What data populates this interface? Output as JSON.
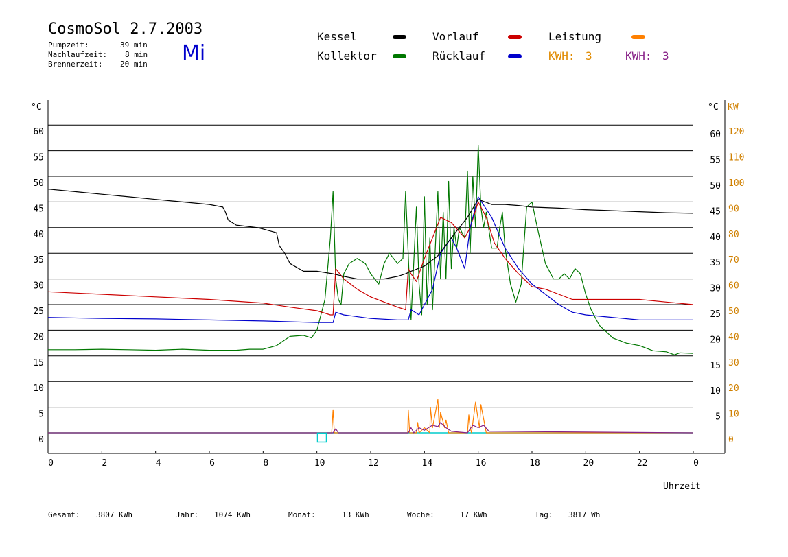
{
  "header": {
    "title": "CosmoSol 2.7.2003",
    "pump_label": "Pumpzeit:",
    "pump_value": "39 min",
    "run_label": "Nachlaufzeit:",
    "run_value": "8 min",
    "burn_label": "Brennerzeit:",
    "burn_value": "20 min",
    "day": "Mi"
  },
  "legend": {
    "kessel": "Kessel",
    "kollektor": "Kollektor",
    "vorlauf": "Vorlauf",
    "ruecklauf": "Rücklauf",
    "leistung": "Leistung",
    "kwh1_label": "KWH:",
    "kwh1_value": "3",
    "kwh2_label": "KWH:",
    "kwh2_value": "3"
  },
  "footer": {
    "gesamt_label": "Gesamt:",
    "gesamt_value": "3807 KWh",
    "jahr_label": "Jahr:",
    "jahr_value": "1074 KWh",
    "monat_label": "Monat:",
    "monat_value": "13 KWh",
    "woche_label": "Woche:",
    "woche_value": "17 KWh",
    "tag_label": "Tag:",
    "tag_value": "3817 Wh"
  },
  "colors": {
    "kessel": "#000000",
    "kollektor": "#007700",
    "vorlauf": "#cc0000",
    "ruecklauf": "#0000cc",
    "leistung": "#ff8000",
    "kwh2": "#882288",
    "baseline": "#00cccc",
    "axis_right": "#d08000"
  },
  "chart_data": {
    "type": "line",
    "xlabel": "Uhrzeit",
    "ylabel_left": "°C",
    "ylabel_right_c": "°C",
    "ylabel_right_kw": "KW",
    "xlim": [
      0,
      24
    ],
    "ylim": [
      0,
      60
    ],
    "y2lim": [
      0,
      120
    ],
    "x_ticks": [
      "0",
      "2",
      "4",
      "6",
      "8",
      "10",
      "12",
      "14",
      "16",
      "18",
      "20",
      "22",
      "0"
    ],
    "y_ticks": [
      0,
      5,
      10,
      15,
      20,
      25,
      30,
      35,
      40,
      45,
      50,
      55,
      60
    ],
    "y2_ticks": [
      0,
      10,
      20,
      30,
      40,
      50,
      60,
      70,
      80,
      90,
      100,
      110,
      120
    ],
    "series": [
      {
        "name": "Kessel",
        "key": "kessel",
        "x": [
          0,
          1,
          2,
          3,
          4,
          5,
          6,
          6.5,
          6.6,
          6.7,
          7,
          7.8,
          8.5,
          8.6,
          8.8,
          9.0,
          9.5,
          10,
          10.6,
          11,
          11.5,
          12,
          12.5,
          13,
          13.3,
          13.5,
          14,
          14.5,
          15,
          15.3,
          15.6,
          16,
          16.5,
          17,
          17.5,
          18,
          19,
          20,
          21,
          22,
          23,
          24
        ],
        "y": [
          47.5,
          47,
          46.5,
          46,
          45.5,
          45,
          44.5,
          44,
          43,
          41.5,
          40.5,
          40,
          39,
          36.5,
          35,
          33,
          31.5,
          31.5,
          31,
          30.5,
          30,
          30,
          30,
          30.5,
          31,
          31.5,
          32.5,
          34.5,
          38,
          40,
          42,
          45.5,
          44.5,
          44.5,
          44.3,
          44,
          43.8,
          43.5,
          43.3,
          43.1,
          42.9,
          42.8
        ]
      },
      {
        "name": "Vorlauf",
        "key": "vorlauf",
        "x": [
          0,
          2,
          4,
          6,
          8,
          9,
          10,
          10.5,
          10.6,
          10.7,
          11,
          11.5,
          12,
          12.5,
          13,
          13.3,
          13.4,
          13.5,
          13.7,
          14,
          14.3,
          14.6,
          15,
          15.5,
          15.7,
          16,
          16.3,
          16.6,
          17,
          17.5,
          18,
          18.5,
          19,
          19.5,
          20,
          21,
          22,
          23,
          24
        ],
        "y": [
          27.5,
          27,
          26.5,
          26,
          25.3,
          24.5,
          23.8,
          23,
          23,
          32,
          30,
          28,
          26.5,
          25.5,
          24.5,
          24,
          32,
          31,
          29.5,
          34,
          38,
          42,
          41,
          38,
          40,
          45,
          42,
          37,
          34,
          31,
          28.5,
          28,
          27,
          26,
          26,
          26,
          26,
          25.5,
          25
        ]
      },
      {
        "name": "Rücklauf",
        "key": "ruecklauf",
        "x": [
          0,
          2,
          4,
          6,
          8,
          10,
          10.6,
          10.7,
          11,
          12,
          13,
          13.4,
          13.5,
          13.8,
          14,
          14.3,
          14.6,
          15,
          15.2,
          15.5,
          15.7,
          16,
          16.5,
          17,
          17.5,
          18,
          18.5,
          19,
          19.5,
          20,
          21,
          22,
          23,
          24
        ],
        "y": [
          22.5,
          22.3,
          22.2,
          22,
          21.8,
          21.5,
          21.5,
          23.5,
          23,
          22.3,
          22,
          22,
          24,
          23,
          25,
          28,
          35,
          38,
          36,
          32,
          40,
          46,
          42,
          36,
          32,
          29,
          27,
          25,
          23.5,
          23,
          22.5,
          22,
          22,
          22
        ]
      },
      {
        "name": "Kollektor",
        "key": "kollektor",
        "x": [
          0,
          1,
          2,
          3,
          4,
          5,
          6,
          7,
          7.5,
          8,
          8.5,
          9,
          9.5,
          9.8,
          10,
          10.3,
          10.5,
          10.6,
          10.7,
          10.8,
          10.9,
          11,
          11.2,
          11.5,
          11.8,
          12,
          12.3,
          12.5,
          12.7,
          13,
          13.2,
          13.3,
          13.5,
          13.7,
          13.8,
          13.9,
          14.0,
          14.1,
          14.2,
          14.3,
          14.5,
          14.6,
          14.7,
          14.8,
          14.9,
          15.0,
          15.1,
          15.2,
          15.3,
          15.5,
          15.6,
          15.7,
          15.8,
          15.9,
          16.0,
          16.1,
          16.2,
          16.3,
          16.5,
          16.7,
          16.8,
          16.9,
          17.0,
          17.2,
          17.4,
          17.6,
          17.8,
          18.0,
          18.2,
          18.5,
          18.8,
          19.0,
          19.2,
          19.4,
          19.6,
          19.8,
          20.0,
          20.2,
          20.5,
          21.0,
          21.5,
          22.0,
          22.5,
          23.0,
          23.3,
          23.5,
          24
        ],
        "y": [
          16.2,
          16.2,
          16.3,
          16.2,
          16.1,
          16.3,
          16.1,
          16.1,
          16.3,
          16.3,
          17,
          18.8,
          19,
          18.5,
          20,
          26,
          38,
          47,
          30,
          26,
          25,
          31,
          33,
          34,
          33,
          31,
          29,
          33,
          35,
          33,
          34,
          47,
          22,
          44,
          29,
          23,
          46,
          25,
          38,
          24,
          47,
          30,
          43,
          30,
          49,
          32,
          40,
          36,
          40,
          38,
          51,
          35,
          50,
          40,
          56,
          44,
          40,
          43,
          36,
          36,
          40,
          43,
          36,
          29,
          25.5,
          29,
          44,
          45,
          40,
          33,
          30,
          30,
          31,
          30,
          32,
          31,
          27,
          24,
          21,
          18.5,
          17.5,
          17,
          16,
          15.8,
          15.2,
          15.6,
          15.5
        ]
      },
      {
        "name": "Leistung",
        "key": "leistung",
        "x": [
          0,
          10.55,
          10.6,
          10.65,
          10.8,
          13.38,
          13.4,
          13.45,
          13.7,
          13.75,
          13.8,
          14.0,
          14.2,
          14.22,
          14.3,
          14.5,
          14.55,
          14.6,
          14.75,
          14.8,
          14.9,
          15.6,
          15.65,
          15.7,
          15.75,
          15.9,
          16.0,
          16.05,
          16.1,
          16.3,
          24
        ],
        "y": [
          0,
          0,
          4.5,
          0,
          0,
          0,
          4.5,
          0,
          0,
          2,
          0,
          1,
          0,
          5,
          1,
          6.5,
          1,
          4,
          1,
          2.5,
          0,
          0,
          3.5,
          1,
          0,
          6,
          2.5,
          1,
          5.5,
          0,
          0
        ]
      },
      {
        "name": "KWH",
        "key": "kwh2",
        "x": [
          0,
          10.6,
          10.7,
          10.8,
          13.4,
          13.5,
          13.6,
          13.8,
          14.0,
          14.3,
          14.5,
          14.6,
          14.8,
          15.0,
          15.6,
          15.8,
          16.0,
          16.2,
          16.4,
          24
        ],
        "y": [
          0,
          0,
          0.8,
          0,
          0,
          1,
          0,
          1,
          0.5,
          1.5,
          1.2,
          2,
          1,
          0.3,
          0,
          1.5,
          1,
          1.5,
          0.3,
          0
        ]
      }
    ],
    "annotations": [
      {
        "type": "marker",
        "x": 10.2,
        "y": -1,
        "shape": "square"
      }
    ]
  }
}
